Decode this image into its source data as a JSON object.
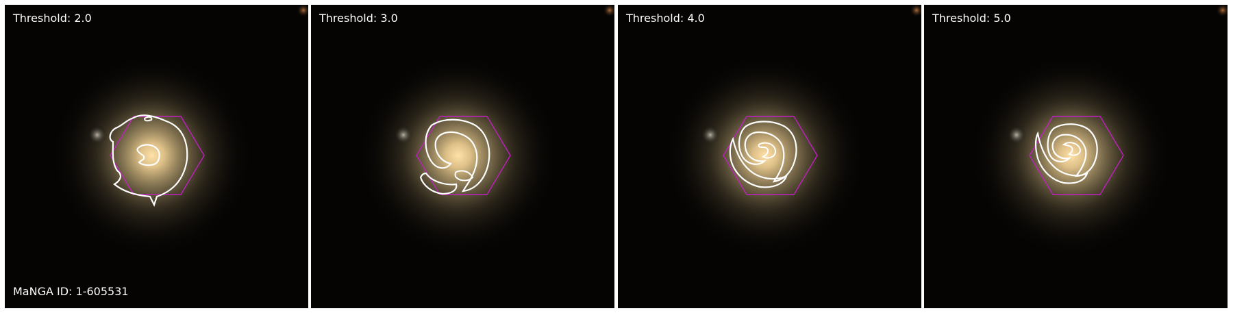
{
  "panels": [
    {
      "label": "Threshold: 2.0"
    },
    {
      "label": "Threshold: 3.0"
    },
    {
      "label": "Threshold: 4.0"
    },
    {
      "label": "Threshold: 5.0"
    }
  ],
  "galaxy_id_label": "MaNGA ID: 1-605531",
  "colors": {
    "background": "#ffffff",
    "sky": "#050403",
    "hexagon": "#c020c0",
    "contour": "#ffffff",
    "galaxy_core": "#ffd89a",
    "galaxy_halo": "#8a7a58"
  }
}
